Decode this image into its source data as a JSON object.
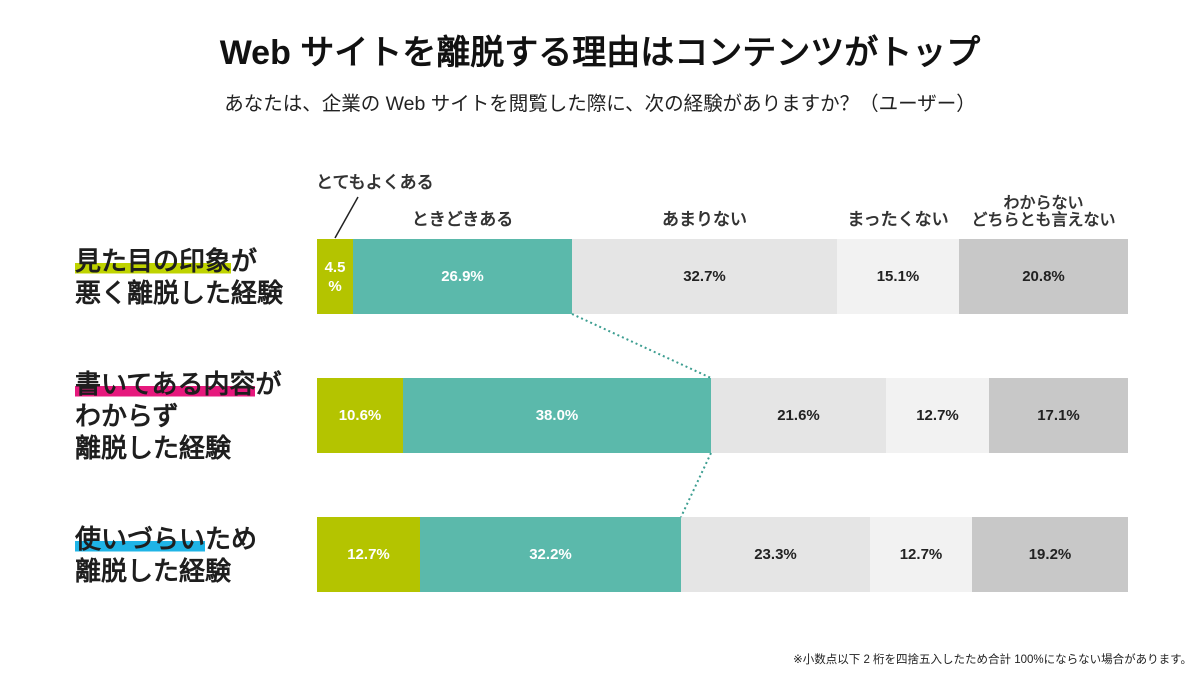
{
  "chart_data": {
    "type": "bar",
    "horizontal": true,
    "stacked": true,
    "title": "Web サイトを離脱する理由はコンテンツがトップ",
    "subtitle": "あなたは、企業の Web サイトを閲覧した際に、次の経験がありますか？（ユーザー）",
    "xlim": [
      0,
      100
    ],
    "grid": false,
    "legend_placement": "top",
    "categories": [
      {
        "lines": [
          "見た目の印象が",
          "悪く離脱した経験"
        ],
        "highlight": "見た目の印象",
        "highlight_color": "#bfd300"
      },
      {
        "lines": [
          "書いてある内容が",
          "わからず",
          "離脱した経験"
        ],
        "highlight": "書いてある内容",
        "highlight_color": "#e6197d"
      },
      {
        "lines": [
          "使いづらいため",
          "離脱した経験"
        ],
        "highlight": "使いづらい",
        "highlight_color": "#1fb4e6"
      }
    ],
    "series": [
      {
        "name": "とてもよくある",
        "color": "#b4c400",
        "text_color": "#ffffff",
        "values": [
          4.5,
          10.6,
          12.7
        ]
      },
      {
        "name": "ときどきある",
        "color": "#5bb9ab",
        "text_color": "#ffffff",
        "values": [
          26.9,
          38.0,
          32.2
        ]
      },
      {
        "name": "あまりない",
        "color": "#e5e5e5",
        "text_color": "#222222",
        "values": [
          32.7,
          21.6,
          23.3
        ]
      },
      {
        "name": "まったくない",
        "color": "#f2f2f2",
        "text_color": "#222222",
        "values": [
          15.1,
          12.7,
          12.7
        ]
      },
      {
        "name": "わからない\nどちらとも言えない",
        "color": "#c8c8c8",
        "text_color": "#222222",
        "values": [
          20.8,
          17.1,
          19.2
        ]
      }
    ],
    "connector_color": "#3d9e91",
    "pointer_color": "#222222"
  },
  "footnote": "※小数点以下 2 桁を四捨五入したため合計 100%にならない場合があります。"
}
